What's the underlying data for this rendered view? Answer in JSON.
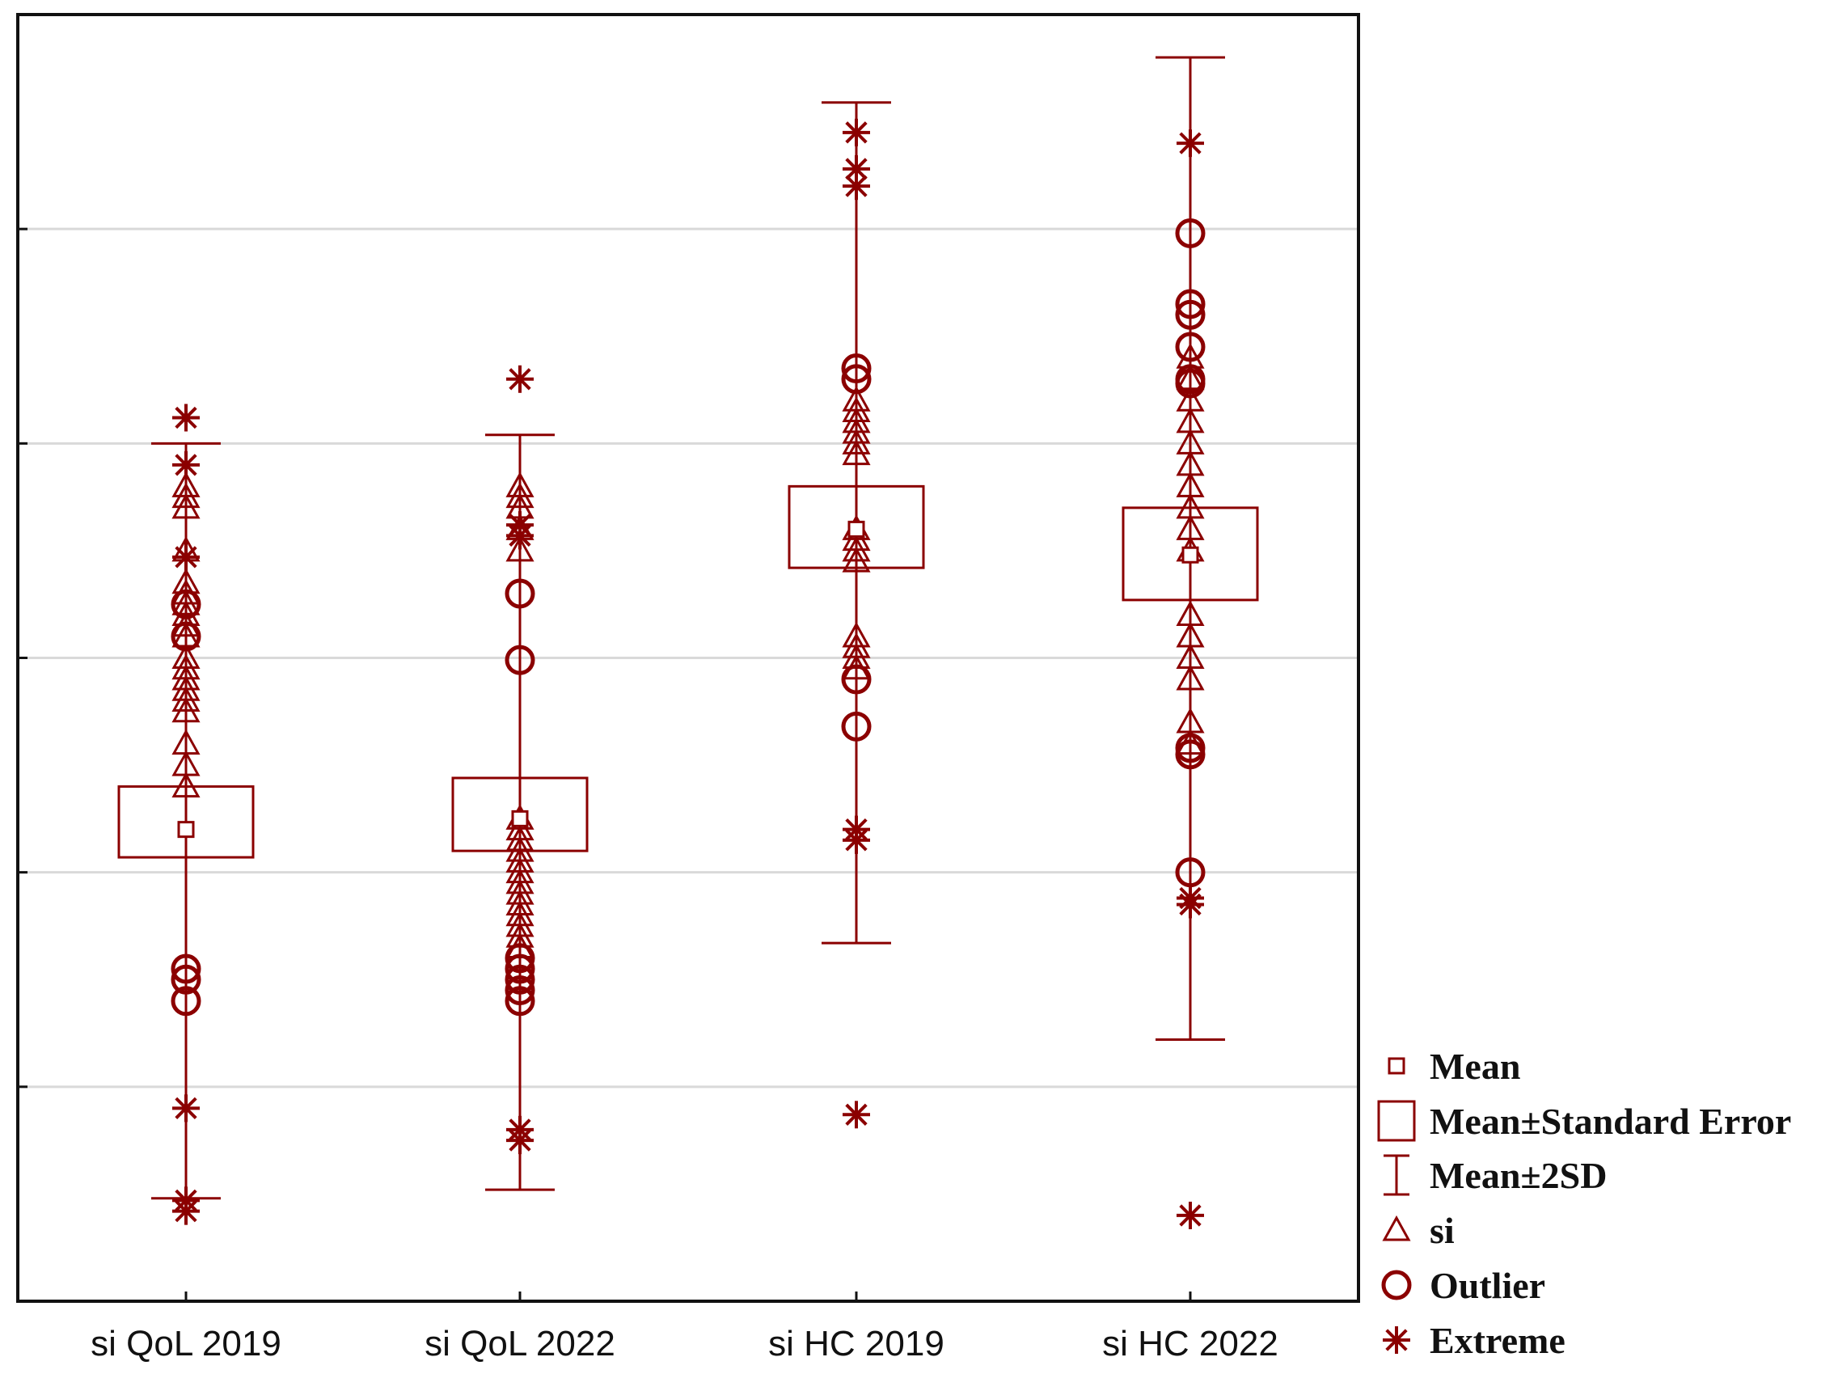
{
  "chart_data": {
    "type": "box",
    "title": "",
    "xlabel": "",
    "ylabel": "",
    "ylim": [
      0,
      6
    ],
    "y_tick_labels_shown": false,
    "grid": true,
    "color": "#8B0000",
    "categories": [
      "si QoL 2019",
      "si QoL 2022",
      "si HC 2019",
      "si HC 2022"
    ],
    "groups": [
      {
        "name": "si QoL 2019",
        "mean": 2.2,
        "se_low": 2.07,
        "se_high": 2.4,
        "sd2_low": 0.48,
        "sd2_high": 4.0,
        "si": [
          3.7,
          3.75,
          3.8,
          3.5,
          3.35,
          3.3,
          3.25,
          3.2,
          3.15,
          3.1,
          3.0,
          2.95,
          2.9,
          2.85,
          2.8,
          2.75,
          2.6,
          2.5,
          2.4
        ],
        "outliers": [
          3.25,
          3.1,
          1.55,
          1.5,
          1.4
        ],
        "extremes": [
          4.12,
          3.9,
          3.47,
          0.9,
          0.47,
          0.42
        ]
      },
      {
        "name": "si QoL 2022",
        "mean": 2.25,
        "se_low": 2.1,
        "se_high": 2.44,
        "sd2_low": 0.52,
        "sd2_high": 4.04,
        "si": [
          3.8,
          3.75,
          3.7,
          3.6,
          3.5,
          2.25,
          2.2,
          2.15,
          2.1,
          2.05,
          2.0,
          1.95,
          1.9,
          1.85,
          1.8,
          1.75,
          1.7,
          1.65
        ],
        "outliers": [
          3.3,
          2.99,
          1.6,
          1.55,
          1.5,
          1.45,
          1.4
        ],
        "extremes": [
          4.3,
          3.62,
          3.57,
          0.8,
          0.75
        ]
      },
      {
        "name": "si HC 2019",
        "mean": 3.6,
        "se_low": 3.42,
        "se_high": 3.8,
        "sd2_low": 1.67,
        "sd2_high": 5.59,
        "si": [
          4.2,
          4.15,
          4.1,
          4.05,
          4.0,
          3.95,
          3.6,
          3.55,
          3.5,
          3.45,
          3.1,
          3.05,
          3.0,
          2.95
        ],
        "outliers": [
          4.35,
          4.3,
          2.9,
          2.68
        ],
        "extremes": [
          5.45,
          5.28,
          5.2,
          2.2,
          2.15,
          0.87
        ]
      },
      {
        "name": "si HC 2022",
        "mean": 3.48,
        "se_low": 3.27,
        "se_high": 3.7,
        "sd2_low": 1.22,
        "sd2_high": 5.8,
        "si": [
          4.4,
          4.3,
          4.2,
          4.1,
          4.0,
          3.9,
          3.8,
          3.7,
          3.6,
          3.5,
          3.2,
          3.1,
          3.0,
          2.9,
          2.7,
          2.6
        ],
        "outliers": [
          4.98,
          4.65,
          4.6,
          4.45,
          4.3,
          4.28,
          2.58,
          2.55,
          2.0
        ],
        "extremes": [
          5.4,
          1.88,
          1.85,
          0.4
        ]
      }
    ],
    "legend": {
      "position": "bottom-right",
      "entries": [
        "Mean",
        "Mean±Standard Error",
        "Mean±2SD",
        "si",
        "Outlier",
        "Extreme"
      ]
    }
  }
}
